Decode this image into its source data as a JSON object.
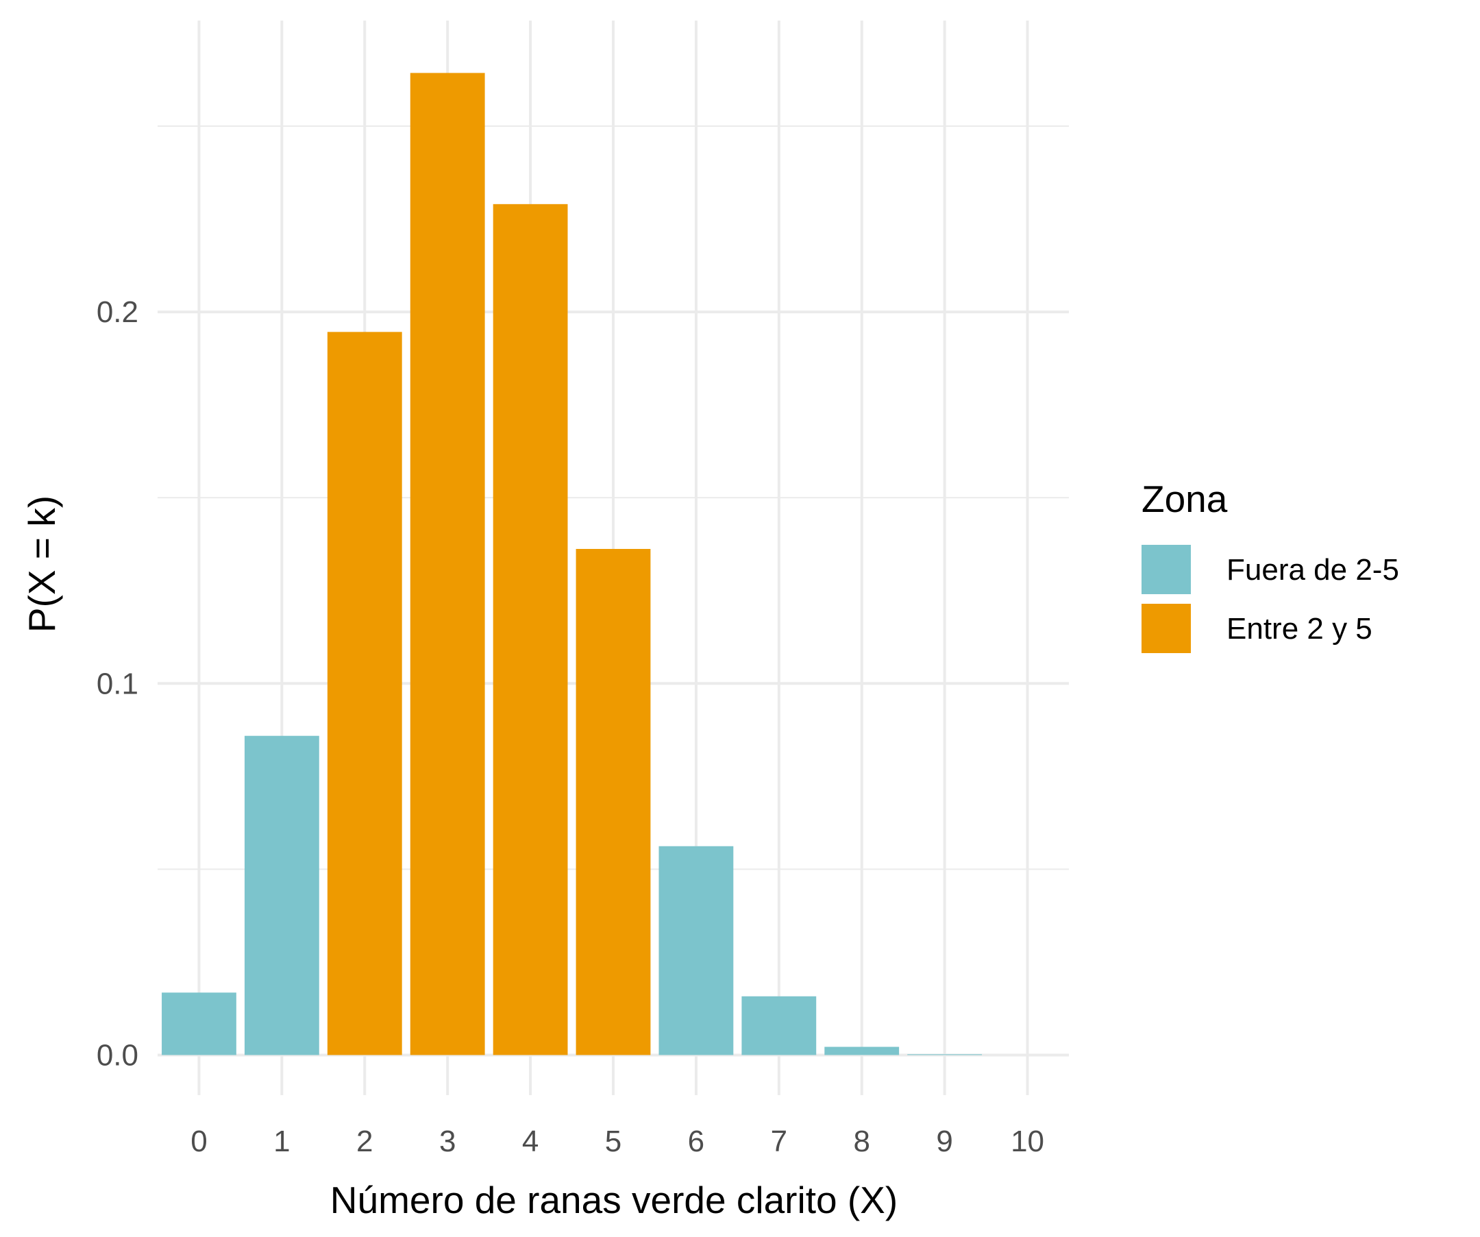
{
  "chart_data": {
    "type": "bar",
    "title": "",
    "xlabel": "Número de ranas verde clarito (X)",
    "ylabel": "P(X = k)",
    "categories": [
      "0",
      "1",
      "2",
      "3",
      "4",
      "5",
      "6",
      "7",
      "8",
      "9",
      "10"
    ],
    "x": [
      0,
      1,
      2,
      3,
      4,
      5,
      6,
      7,
      8,
      9,
      10
    ],
    "values": [
      0.0168,
      0.0859,
      0.1946,
      0.2643,
      0.229,
      0.1362,
      0.0562,
      0.0158,
      0.0022,
      0.0002,
      0.0
    ],
    "groups": [
      "Fuera de 2-5",
      "Fuera de 2-5",
      "Entre 2 y 5",
      "Entre 2 y 5",
      "Entre 2 y 5",
      "Entre 2 y 5",
      "Fuera de 2-5",
      "Fuera de 2-5",
      "Fuera de 2-5",
      "Fuera de 2-5",
      "Fuera de 2-5"
    ],
    "ylim": [
      -0.0108,
      0.2784
    ],
    "yticks": [
      0.0,
      0.1,
      0.2
    ],
    "ytick_labels": [
      "0.0",
      "0.1",
      "0.2"
    ],
    "grid": true,
    "legend": {
      "title": "Zona",
      "position": "right",
      "entries": [
        {
          "label": "Fuera de 2-5",
          "color": "#7CC4CC"
        },
        {
          "label": "Entre 2 y 5",
          "color": "#EE9A00"
        }
      ]
    },
    "colors": {
      "Fuera de 2-5": "#7CC4CC",
      "Entre 2 y 5": "#EE9A00",
      "grid": "#EBEBEB",
      "background": "#FFFFFF"
    }
  }
}
